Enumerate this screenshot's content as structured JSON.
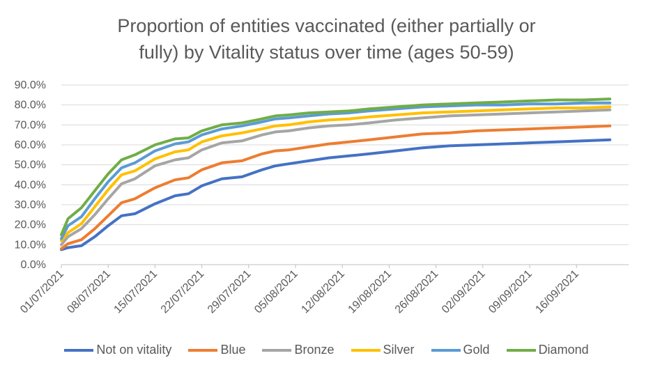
{
  "chart_data": {
    "type": "line",
    "title_lines": [
      "Proportion of entities vaccinated (either partially or",
      "fully) by Vitality status over time (ages 50-59)"
    ],
    "xlabel": "",
    "ylabel": "",
    "ylim": [
      0,
      90
    ],
    "y_ticks": [
      "0.0%",
      "10.0%",
      "20.0%",
      "30.0%",
      "40.0%",
      "50.0%",
      "60.0%",
      "70.0%",
      "80.0%",
      "90.0%"
    ],
    "x_tick_labels": [
      "01/07/2021",
      "08/07/2021",
      "15/07/2021",
      "22/07/2021",
      "29/07/2021",
      "05/08/2021",
      "12/08/2021",
      "19/08/2021",
      "26/08/2021",
      "02/09/2021",
      "09/09/2021",
      "16/09/2021"
    ],
    "x_range_days": [
      0,
      82
    ],
    "grid": "horizontal",
    "legend_position": "bottom",
    "series": [
      {
        "name": "Not on vitality",
        "color": "#4472C4",
        "days": [
          0,
          1,
          3,
          5,
          7,
          9,
          11,
          14,
          17,
          19,
          21,
          24,
          27,
          30,
          32,
          34,
          37,
          40,
          43,
          46,
          50,
          54,
          58,
          62,
          66,
          70,
          74,
          78,
          82
        ],
        "values": [
          7.5,
          8.5,
          9.5,
          14,
          19.5,
          24.5,
          25.5,
          30.5,
          34.5,
          35.5,
          39.5,
          43,
          44,
          47.5,
          49.5,
          50.5,
          52,
          53.5,
          54.5,
          55.5,
          57,
          58.5,
          59.5,
          60,
          60.5,
          61,
          61.5,
          62,
          62.5
        ]
      },
      {
        "name": "Blue",
        "color": "#ED7D31",
        "days": [
          0,
          1,
          3,
          5,
          7,
          9,
          11,
          14,
          17,
          19,
          21,
          24,
          27,
          30,
          32,
          34,
          37,
          40,
          43,
          46,
          50,
          54,
          58,
          62,
          66,
          70,
          74,
          78,
          82
        ],
        "values": [
          8,
          10.5,
          12.5,
          18,
          24.5,
          31,
          33,
          38.5,
          42.5,
          43.5,
          47.5,
          51,
          52,
          55.5,
          57,
          57.5,
          59,
          60.5,
          61.5,
          62.5,
          64,
          65.5,
          66,
          67,
          67.5,
          68,
          68.5,
          69,
          69.5
        ]
      },
      {
        "name": "Bronze",
        "color": "#A5A5A5",
        "days": [
          0,
          1,
          3,
          5,
          7,
          9,
          11,
          14,
          17,
          19,
          21,
          24,
          27,
          30,
          32,
          34,
          37,
          40,
          43,
          46,
          50,
          54,
          58,
          62,
          66,
          70,
          74,
          78,
          82
        ],
        "values": [
          10,
          14,
          18,
          25,
          33,
          40.5,
          43,
          49.5,
          52.5,
          53.5,
          57.5,
          61,
          62,
          65,
          66.5,
          67,
          68.5,
          69.5,
          70,
          71,
          72.5,
          73.5,
          74.5,
          75,
          75.5,
          76,
          76.5,
          77,
          77.5
        ]
      },
      {
        "name": "Silver",
        "color": "#FFC000",
        "days": [
          0,
          1,
          3,
          5,
          7,
          9,
          11,
          14,
          17,
          19,
          21,
          24,
          27,
          30,
          32,
          34,
          37,
          40,
          43,
          46,
          50,
          54,
          58,
          62,
          66,
          70,
          74,
          78,
          82
        ],
        "values": [
          12,
          16,
          20.5,
          29,
          37.5,
          45,
          47,
          53,
          56.5,
          57.5,
          61.5,
          64.5,
          66,
          68,
          69.5,
          70,
          71.5,
          72.5,
          73,
          74,
          75,
          76,
          76.5,
          77,
          77.5,
          78,
          78.5,
          78.5,
          79
        ]
      },
      {
        "name": "Gold",
        "color": "#5B9BD5",
        "days": [
          0,
          1,
          3,
          5,
          7,
          9,
          11,
          14,
          17,
          19,
          21,
          24,
          27,
          30,
          32,
          34,
          37,
          40,
          43,
          46,
          50,
          54,
          58,
          62,
          66,
          70,
          74,
          78,
          82
        ],
        "values": [
          13,
          19.5,
          24,
          33,
          41.5,
          48.5,
          51,
          57,
          60.5,
          61.5,
          65,
          68,
          69.5,
          71.5,
          73,
          73.5,
          74.5,
          75.5,
          76,
          77,
          78,
          79,
          79.5,
          80,
          80,
          80.5,
          80.5,
          81,
          81
        ]
      },
      {
        "name": "Diamond",
        "color": "#70AD47",
        "days": [
          0,
          1,
          3,
          5,
          7,
          9,
          11,
          14,
          17,
          19,
          21,
          24,
          27,
          30,
          32,
          34,
          37,
          40,
          43,
          46,
          50,
          54,
          58,
          62,
          66,
          70,
          74,
          78,
          82
        ],
        "values": [
          15,
          23,
          28.5,
          37,
          45.5,
          52.5,
          55,
          60,
          63,
          63.5,
          67,
          70,
          71,
          73,
          74.5,
          75,
          76,
          76.5,
          77,
          78,
          79,
          80,
          80.5,
          81,
          81.5,
          82,
          82.5,
          82.5,
          83
        ]
      }
    ]
  }
}
